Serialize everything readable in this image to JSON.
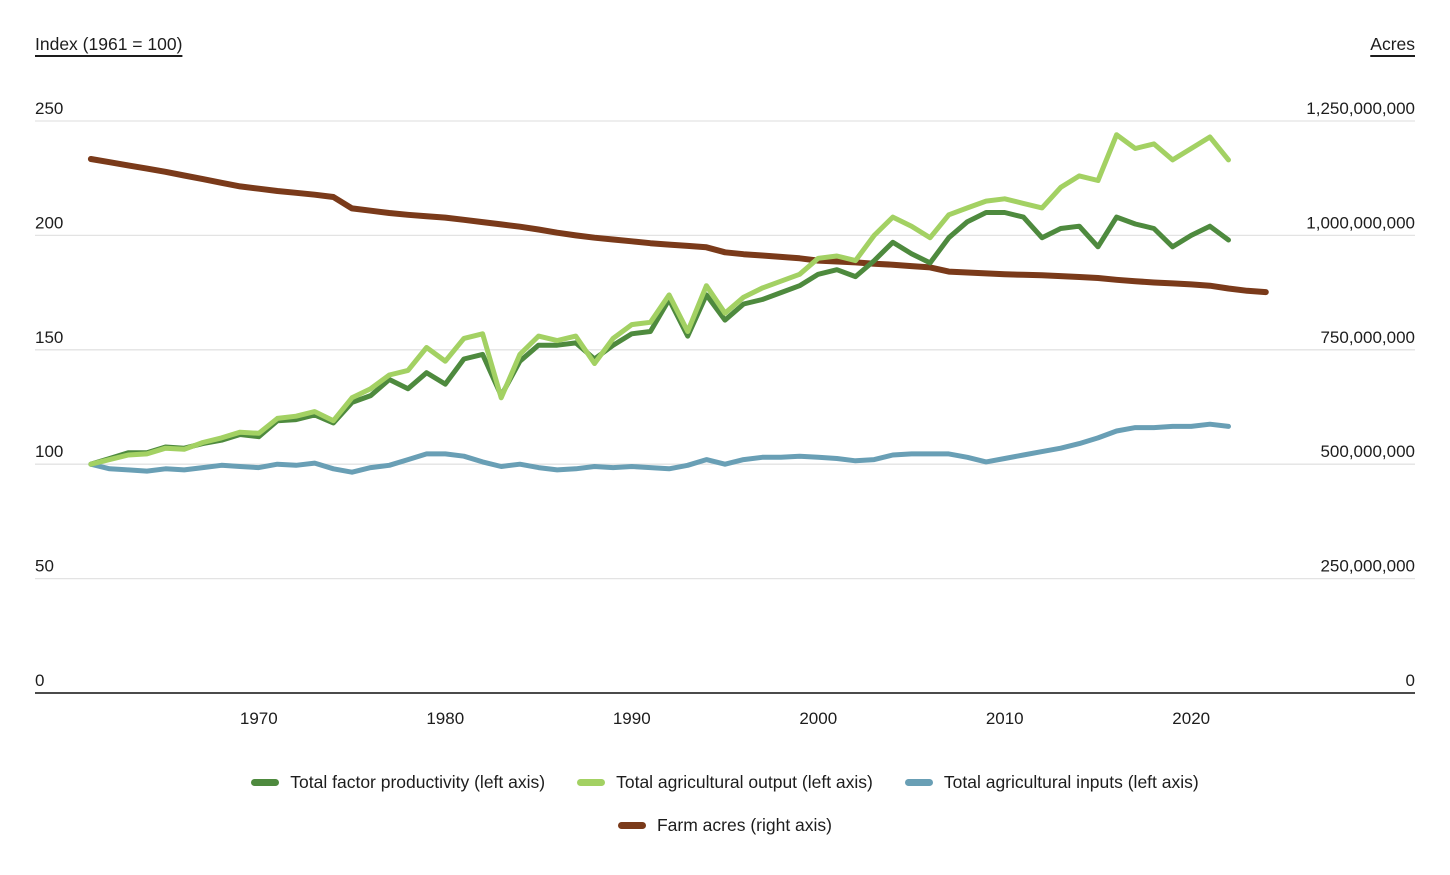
{
  "axes": {
    "left": {
      "title": "Index (1961 = 100)",
      "ticks": [
        0,
        50,
        100,
        150,
        200,
        250
      ],
      "tick_labels": [
        "0",
        "50",
        "100",
        "150",
        "200",
        "250"
      ]
    },
    "right": {
      "title": "Acres",
      "ticks": [
        0,
        250000000,
        500000000,
        750000000,
        1000000000,
        1250000000
      ],
      "tick_labels": [
        "0",
        "250,000,000",
        "500,000,000",
        "750,000,000",
        "1,000,000,000",
        "1,250,000,000"
      ]
    },
    "x": {
      "ticks": [
        1970,
        1980,
        1990,
        2000,
        2010,
        2020
      ],
      "tick_labels": [
        "1970",
        "1980",
        "1990",
        "2000",
        "2010",
        "2020"
      ]
    }
  },
  "colors": {
    "grid": "#e3e3e3",
    "axis_line": "#4b4b4b",
    "text": "#1d1d1d",
    "tfp": "#4e8a3e",
    "output": "#a3d163",
    "inputs": "#699fb5",
    "acres": "#7a3a1a"
  },
  "chart_data": {
    "type": "line",
    "title": "",
    "xlabel": "",
    "ylabel_left": "Index (1961 = 100)",
    "ylabel_right": "Acres",
    "x_domain": [
      1958,
      2032
    ],
    "left_ylim": [
      0,
      250
    ],
    "right_ylim": [
      0,
      1250000000
    ],
    "grid": "horizontal",
    "legend_position": "bottom",
    "x_years": [
      1961,
      1962,
      1963,
      1964,
      1965,
      1966,
      1967,
      1968,
      1969,
      1970,
      1971,
      1972,
      1973,
      1974,
      1975,
      1976,
      1977,
      1978,
      1979,
      1980,
      1981,
      1982,
      1983,
      1984,
      1985,
      1986,
      1987,
      1988,
      1989,
      1990,
      1991,
      1992,
      1993,
      1994,
      1995,
      1996,
      1997,
      1998,
      1999,
      2000,
      2001,
      2002,
      2003,
      2004,
      2005,
      2006,
      2007,
      2008,
      2009,
      2010,
      2011,
      2012,
      2013,
      2014,
      2015,
      2016,
      2017,
      2018,
      2019,
      2020,
      2021,
      2022
    ],
    "acres_years": [
      1961,
      1962,
      1963,
      1964,
      1965,
      1966,
      1967,
      1968,
      1969,
      1970,
      1971,
      1972,
      1973,
      1974,
      1975,
      1976,
      1977,
      1978,
      1979,
      1980,
      1981,
      1982,
      1983,
      1984,
      1985,
      1986,
      1987,
      1988,
      1989,
      1990,
      1991,
      1992,
      1993,
      1994,
      1995,
      1996,
      1997,
      1998,
      1999,
      2000,
      2001,
      2002,
      2003,
      2004,
      2005,
      2006,
      2007,
      2008,
      2009,
      2010,
      2011,
      2012,
      2013,
      2014,
      2015,
      2016,
      2017,
      2018,
      2019,
      2020,
      2021,
      2022,
      2023,
      2024
    ],
    "series": [
      {
        "name": "Total factor productivity (left axis)",
        "axis": "left",
        "color": "#4e8a3e",
        "values": [
          100,
          102.5,
          105,
          105,
          107.5,
          107,
          109,
          110.5,
          113,
          112,
          119,
          119.5,
          121.5,
          118,
          127,
          130,
          137,
          133,
          140,
          135,
          146,
          148,
          130,
          145,
          152,
          152,
          153,
          146,
          152,
          157,
          158,
          172,
          156,
          174,
          163,
          170,
          172,
          175,
          178,
          183,
          185,
          182,
          189,
          197,
          192,
          188,
          199,
          206,
          210,
          210,
          208,
          199,
          203,
          204,
          195,
          208,
          205,
          203,
          195,
          200,
          204,
          198
        ]
      },
      {
        "name": "Total agricultural output (left axis)",
        "axis": "left",
        "color": "#a3d163",
        "values": [
          100,
          102,
          104,
          104.5,
          107,
          106.5,
          109.5,
          111.5,
          114,
          113.5,
          120,
          121,
          123,
          119,
          129,
          133,
          139,
          141,
          151,
          145,
          155,
          157,
          129,
          148,
          156,
          154,
          156,
          144,
          155,
          161,
          162,
          174,
          158,
          178,
          166,
          173,
          177,
          180,
          183,
          190,
          191,
          189,
          200,
          208,
          204,
          199,
          209,
          212,
          215,
          216,
          214,
          212,
          221,
          226,
          224,
          244,
          238,
          240,
          233,
          238,
          243,
          233
        ]
      },
      {
        "name": "Total agricultural inputs (left axis)",
        "axis": "left",
        "color": "#699fb5",
        "values": [
          100,
          98,
          97.5,
          97,
          98,
          97.5,
          98.5,
          99.5,
          99,
          98.5,
          100,
          99.5,
          100.5,
          98,
          96.5,
          98.5,
          99.5,
          102,
          104.5,
          104.5,
          103.5,
          101,
          99,
          100,
          98.5,
          97.5,
          98,
          99,
          98.5,
          99,
          98.5,
          98,
          99.5,
          102,
          100,
          102,
          103,
          103,
          103.5,
          103,
          102.5,
          101.5,
          102,
          104,
          104.5,
          104.5,
          104.5,
          103,
          101,
          102.5,
          104,
          105.5,
          107,
          109,
          111.5,
          114.5,
          116,
          116,
          116.5,
          116.5,
          117.5,
          116.5
        ]
      },
      {
        "name": "Farm acres (right axis)",
        "axis": "right",
        "color": "#7a3a1a",
        "values": [
          1167000000,
          1160000000,
          1153000000,
          1146000000,
          1139000000,
          1131000000,
          1123000000,
          1115000000,
          1107000000,
          1102000000,
          1097000000,
          1093000000,
          1089000000,
          1084000000,
          1059000000,
          1054000000,
          1049000000,
          1045000000,
          1042000000,
          1039000000,
          1034000000,
          1029000000,
          1024000000,
          1019000000,
          1013000000,
          1006000000,
          1000000000,
          995000000,
          991000000,
          987000000,
          983000000,
          980000000,
          977000000,
          974000000,
          963000000,
          959000000,
          956000000,
          953000000,
          950000000,
          945000000,
          943000000,
          941000000,
          938000000,
          936000000,
          933000000,
          930000000,
          921000000,
          919000000,
          917000000,
          915000000,
          914000000,
          913000000,
          911000000,
          909000000,
          907000000,
          903000000,
          900000000,
          897000000,
          895000000,
          893000000,
          890000000,
          884000000,
          879000000,
          876000000
        ]
      }
    ]
  },
  "legend": {
    "row1": [
      "Total factor productivity (left axis)",
      "Total agricultural output (left axis)",
      "Total agricultural inputs (left axis)"
    ],
    "row2": [
      "Farm acres (right axis)"
    ]
  }
}
